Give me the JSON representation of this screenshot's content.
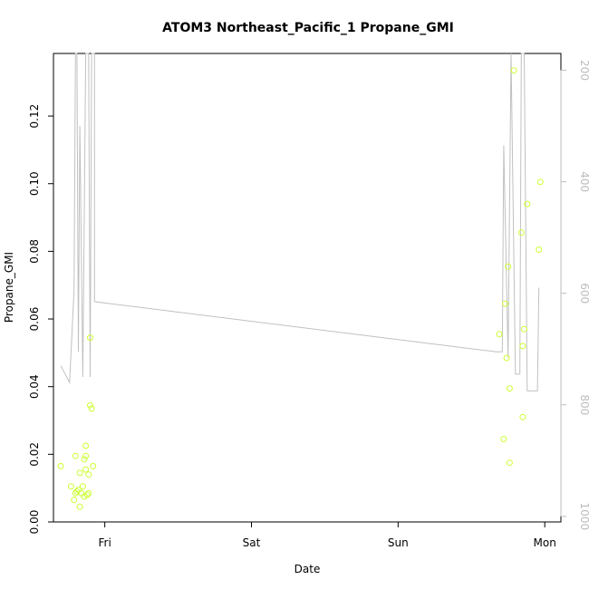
{
  "chart_data": {
    "type": "scatter",
    "title": "ATOM3 Northeast_Pacific_1 Propane_GMI",
    "xlabel": "Date",
    "ylabel": "Propane_GMI",
    "x_ticks": [
      "Fri",
      "Sat",
      "Sun",
      "Mon"
    ],
    "x_tick_positions_days": [
      1,
      2,
      3,
      4
    ],
    "xlim_days": [
      0.65,
      4.11
    ],
    "ylim": [
      0,
      0.1385
    ],
    "y_ticks": [
      0.0,
      0.02,
      0.04,
      0.06,
      0.08,
      0.1,
      0.12
    ],
    "y_tick_labels": [
      "0.00",
      "0.02",
      "0.04",
      "0.06",
      "0.08",
      "0.10",
      "0.12"
    ],
    "y2_ticks": [
      200,
      400,
      600,
      800,
      1000
    ],
    "y2_lim": [
      1010,
      170
    ],
    "grid": false,
    "colors": {
      "points": "#ccff33",
      "line": "#c0c0c0",
      "axis": "#000000",
      "right_axis": "#bdbdbd"
    },
    "series": [
      {
        "kind": "points",
        "points": [
          [
            0.7,
            0.0165
          ],
          [
            0.77,
            0.0105
          ],
          [
            0.79,
            0.0065
          ],
          [
            0.8,
            0.0195
          ],
          [
            0.8,
            0.0085
          ],
          [
            0.81,
            0.009
          ],
          [
            0.82,
            0.0095
          ],
          [
            0.83,
            0.0145
          ],
          [
            0.83,
            0.0045
          ],
          [
            0.84,
            0.0085
          ],
          [
            0.85,
            0.0105
          ],
          [
            0.86,
            0.0185
          ],
          [
            0.86,
            0.0075
          ],
          [
            0.87,
            0.0195
          ],
          [
            0.87,
            0.0155
          ],
          [
            0.87,
            0.0225
          ],
          [
            0.88,
            0.008
          ],
          [
            0.89,
            0.0085
          ],
          [
            0.89,
            0.014
          ],
          [
            0.9,
            0.0545
          ],
          [
            0.9,
            0.0345
          ],
          [
            0.91,
            0.0335
          ],
          [
            0.92,
            0.0165
          ],
          [
            3.69,
            0.0555
          ],
          [
            3.72,
            0.0245
          ],
          [
            3.73,
            0.0645
          ],
          [
            3.74,
            0.0485
          ],
          [
            3.75,
            0.0755
          ],
          [
            3.76,
            0.0395
          ],
          [
            3.76,
            0.0175
          ],
          [
            3.79,
            0.1335
          ],
          [
            3.84,
            0.0855
          ],
          [
            3.85,
            0.052
          ],
          [
            3.85,
            0.031
          ],
          [
            3.86,
            0.057
          ],
          [
            3.88,
            0.094
          ],
          [
            3.96,
            0.0805
          ],
          [
            3.97,
            0.1005
          ]
        ]
      },
      {
        "kind": "line",
        "axis": "right",
        "points": [
          [
            0.7,
            730
          ],
          [
            0.76,
            760
          ],
          [
            0.79,
            595
          ],
          [
            0.8,
            150
          ],
          [
            0.81,
            150
          ],
          [
            0.82,
            705
          ],
          [
            0.83,
            300
          ],
          [
            0.85,
            750
          ],
          [
            0.87,
            150
          ],
          [
            0.89,
            150
          ],
          [
            0.9,
            750
          ],
          [
            0.91,
            150
          ],
          [
            0.93,
            150
          ],
          [
            0.93,
            615
          ],
          [
            3.67,
            705
          ],
          [
            3.71,
            705
          ],
          [
            3.72,
            335
          ],
          [
            3.75,
            715
          ],
          [
            3.77,
            150
          ],
          [
            3.8,
            745
          ],
          [
            3.83,
            745
          ],
          [
            3.84,
            150
          ],
          [
            3.86,
            150
          ],
          [
            3.88,
            775
          ],
          [
            3.95,
            775
          ],
          [
            3.96,
            590
          ]
        ]
      }
    ]
  }
}
